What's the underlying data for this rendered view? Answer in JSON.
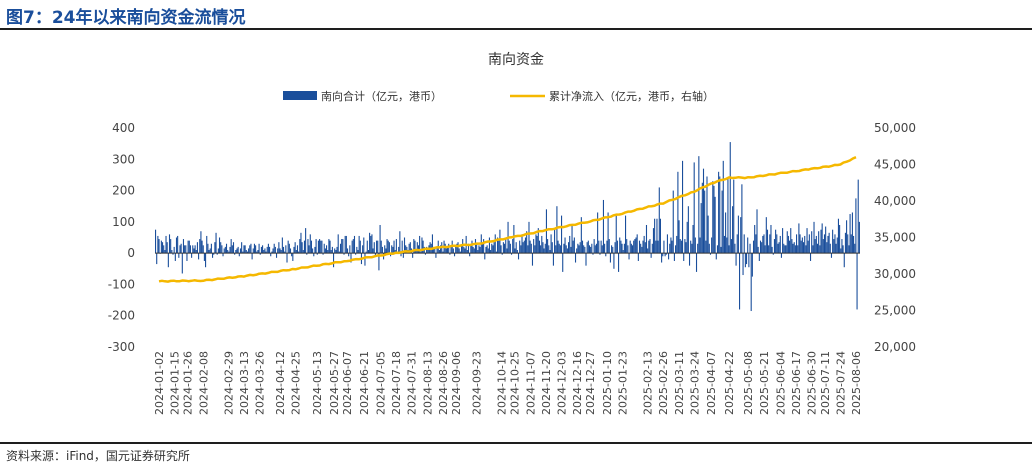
{
  "header": {
    "figure_title": "图7：24年以来南向资金流情况"
  },
  "footer": {
    "source": "资料来源：iFind，国元证券研究所"
  },
  "chart_data": {
    "type": "bar+line",
    "title": "南向资金",
    "colors": {
      "bar": "#1a4e9b",
      "line": "#f5b800"
    },
    "legend_position": "top-center",
    "series": [
      {
        "name": "南向合计（亿元，港币）",
        "type": "bar",
        "axis": "left"
      },
      {
        "name": "累计净流入（亿元，港币，右轴）",
        "type": "line",
        "axis": "right"
      }
    ],
    "y_left": {
      "ylim": [
        -300,
        400
      ],
      "ticks": [
        "400",
        "300",
        "200",
        "100",
        "0",
        "-100",
        "-200",
        "-300"
      ]
    },
    "y_right": {
      "ylim": [
        20000,
        50000
      ],
      "ticks": [
        "50,000",
        "45,000",
        "40,000",
        "35,000",
        "30,000",
        "25,000",
        "20,000"
      ]
    },
    "x_ticks": [
      "2024-01-02",
      "2024-01-15",
      "2024-01-26",
      "2024-02-08",
      "2024-02-29",
      "2024-03-13",
      "2024-03-26",
      "2024-04-12",
      "2024-04-25",
      "2024-05-13",
      "2024-05-27",
      "2024-06-07",
      "2024-06-21",
      "2024-07-05",
      "2024-07-18",
      "2024-07-31",
      "2024-08-13",
      "2024-08-26",
      "2024-09-06",
      "2024-09-23",
      "2024-10-14",
      "2024-10-25",
      "2024-11-07",
      "2024-11-20",
      "2024-12-03",
      "2024-12-16",
      "2024-12-27",
      "2025-01-10",
      "2025-01-23",
      "2025-02-13",
      "2025-02-26",
      "2025-03-11",
      "2025-03-24",
      "2025-04-07",
      "2025-04-22",
      "2025-05-08",
      "2025-05-21",
      "2025-06-04",
      "2025-06-17",
      "2025-06-30",
      "2025-07-11",
      "2025-07-24",
      "2025-08-06"
    ],
    "bar_values": [
      75,
      -35,
      55,
      45,
      0,
      40,
      35,
      25,
      10,
      55,
      35,
      -45,
      60,
      45,
      10,
      -5,
      20,
      -25,
      50,
      55,
      -15,
      25,
      30,
      -65,
      45,
      25,
      25,
      -25,
      40,
      40,
      25,
      -15,
      25,
      15,
      25,
      10,
      35,
      -20,
      45,
      70,
      40,
      25,
      -25,
      -45,
      55,
      30,
      10,
      15,
      30,
      -15,
      -5,
      35,
      65,
      -5,
      15,
      50,
      35,
      25,
      -10,
      15,
      20,
      30,
      10,
      5,
      20,
      45,
      25,
      35,
      -5,
      10,
      15,
      20,
      -10,
      15,
      35,
      5,
      25,
      25,
      10,
      5,
      15,
      25,
      30,
      -20,
      15,
      30,
      25,
      5,
      10,
      30,
      -5,
      20,
      25,
      10,
      15,
      5,
      20,
      30,
      20,
      -10,
      5,
      15,
      30,
      20,
      -15,
      15,
      35,
      15,
      10,
      50,
      20,
      5,
      25,
      -30,
      40,
      30,
      15,
      -10,
      -25,
      20,
      35,
      10,
      25,
      5,
      45,
      65,
      35,
      10,
      40,
      80,
      -5,
      45,
      25,
      60,
      40,
      15,
      -10,
      20,
      45,
      -5,
      40,
      45,
      40,
      40,
      -5,
      30,
      15,
      25,
      10,
      45,
      40,
      10,
      20,
      -45,
      15,
      10,
      20,
      60,
      5,
      30,
      45,
      45,
      -5,
      55,
      55,
      15,
      -10,
      25,
      -30,
      40,
      45,
      55,
      -5,
      20,
      10,
      55,
      40,
      -35,
      25,
      50,
      -40,
      5,
      40,
      10,
      65,
      55,
      60,
      15,
      35,
      -10,
      40,
      40,
      -55,
      90,
      40,
      20,
      -20,
      25,
      15,
      45,
      40,
      35,
      -10,
      25,
      20,
      40,
      10,
      45,
      5,
      20,
      70,
      -10,
      40,
      -15,
      50,
      25,
      20,
      10,
      30,
      35,
      15,
      -15,
      45,
      40,
      10,
      35,
      25,
      55,
      5,
      50,
      40,
      20,
      -5,
      20,
      15,
      25,
      35,
      30,
      60,
      20,
      15,
      -15,
      20,
      40,
      10,
      25,
      35,
      5,
      40,
      30,
      15,
      20,
      30,
      -5,
      25,
      40,
      15,
      -10,
      20,
      30,
      35,
      15,
      5,
      25,
      45,
      20,
      15,
      55,
      10,
      30,
      -10,
      25,
      40,
      20,
      15,
      45,
      30,
      10,
      25,
      20,
      60,
      30,
      45,
      -20,
      20,
      25,
      15,
      50,
      10,
      30,
      25,
      35,
      60,
      5,
      50,
      40,
      75,
      25,
      -5,
      35,
      30,
      45,
      15,
      100,
      40,
      30,
      -5,
      45,
      90,
      15,
      35,
      10,
      -20,
      40,
      25,
      60,
      35,
      40,
      50,
      70,
      25,
      100,
      40,
      30,
      -40,
      45,
      25,
      60,
      55,
      80,
      40,
      25,
      55,
      35,
      15,
      30,
      140,
      45,
      25,
      10,
      60,
      35,
      -40,
      80,
      25,
      150,
      40,
      30,
      25,
      120,
      -60,
      30,
      50,
      25,
      15,
      35,
      55,
      20,
      90,
      40,
      50,
      -30,
      15,
      30,
      25,
      35,
      115,
      40,
      25,
      20,
      -40,
      35,
      40,
      25,
      20,
      30,
      -5,
      45,
      25,
      30,
      130,
      40,
      -5,
      40,
      25,
      170,
      30,
      -10,
      40,
      130,
      45,
      -30,
      25,
      20,
      -50,
      35,
      120,
      40,
      -60,
      50,
      40,
      30,
      10,
      30,
      120,
      45,
      25,
      -20,
      40,
      30,
      25,
      40,
      45,
      50,
      60,
      -25,
      40,
      30,
      20,
      40,
      55,
      35,
      90,
      15,
      40,
      45,
      -15,
      30,
      80,
      110,
      40,
      110,
      40,
      210,
      110,
      -30,
      -10,
      40,
      -10,
      -5,
      60,
      -20,
      30,
      50,
      40,
      200,
      -25,
      25,
      55,
      260,
      105,
      45,
      40,
      295,
      -25,
      45,
      35,
      100,
      150,
      -40,
      40,
      30,
      90,
      290,
      50,
      -60,
      30,
      310,
      50,
      160,
      225,
      270,
      200,
      40,
      245,
      120,
      30,
      -5,
      50,
      230,
      215,
      180,
      -20,
      25,
      260,
      245,
      20,
      200,
      295,
      55,
      130,
      50,
      240,
      25,
      355,
      45,
      150,
      235,
      30,
      -40,
      60,
      120,
      -180,
      115,
      220,
      -70,
      60,
      -45,
      -35,
      50,
      -45,
      30,
      -185,
      -75,
      40,
      90,
      60,
      140,
      20,
      -25,
      40,
      35,
      55,
      60,
      25,
      115,
      75,
      25,
      60,
      90,
      20,
      -5,
      45,
      75,
      60,
      30,
      35,
      55,
      -15,
      80,
      30,
      25,
      25,
      70,
      55,
      40,
      80,
      45,
      30,
      35,
      25,
      60,
      25,
      95,
      60,
      40,
      50,
      35,
      55,
      25,
      80,
      40,
      60,
      -25,
      70,
      25,
      100,
      45,
      55,
      30,
      70,
      25,
      75,
      95,
      45,
      60,
      85,
      35,
      55,
      65,
      30,
      -15,
      75,
      45,
      60,
      30,
      50,
      110,
      90,
      15,
      45,
      25,
      -45,
      65,
      105,
      60,
      25,
      125,
      60,
      130,
      55,
      30,
      175,
      -180,
      235,
      100
    ],
    "line_points": [
      [
        "2024-01-02",
        29000
      ],
      [
        "2024-02-08",
        29100
      ],
      [
        "2024-03-13",
        29700
      ],
      [
        "2024-04-25",
        30700
      ],
      [
        "2024-06-07",
        31800
      ],
      [
        "2024-07-18",
        32900
      ],
      [
        "2024-08-26",
        33700
      ],
      [
        "2024-09-23",
        34100
      ],
      [
        "2024-10-25",
        35100
      ],
      [
        "2024-11-20",
        36000
      ],
      [
        "2024-12-27",
        37200
      ],
      [
        "2025-01-23",
        38300
      ],
      [
        "2025-02-26",
        39700
      ],
      [
        "2025-03-24",
        41300
      ],
      [
        "2025-04-07",
        42400
      ],
      [
        "2025-04-22",
        43200
      ],
      [
        "2025-05-08",
        43200
      ],
      [
        "2025-06-04",
        43800
      ],
      [
        "2025-06-30",
        44400
      ],
      [
        "2025-07-24",
        45000
      ],
      [
        "2025-08-06",
        46000
      ]
    ]
  }
}
